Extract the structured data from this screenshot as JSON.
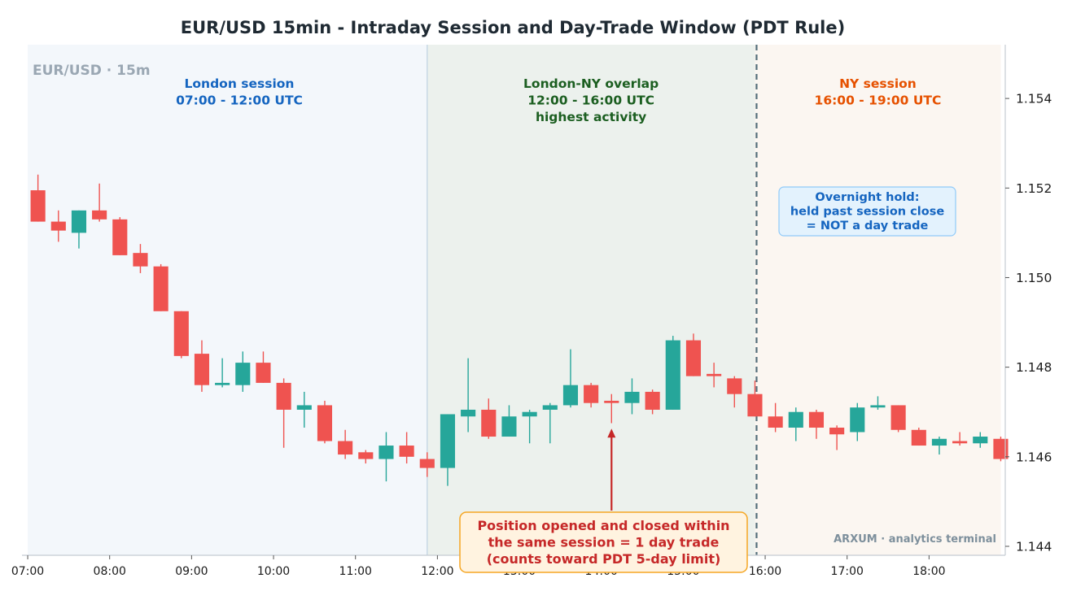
{
  "chart_data": {
    "type": "candlestick",
    "title": "EUR/USD 15min - Intraday Session and Day-Trade Window (PDT Rule)",
    "watermark": "EUR/USD · 15m",
    "footer": "ARXUM · analytics terminal",
    "xlabel": "",
    "ylabel": "",
    "x_ticks": [
      "07:00",
      "08:00",
      "09:00",
      "10:00",
      "11:00",
      "12:00",
      "13:00",
      "14:00",
      "15:00",
      "16:00",
      "17:00",
      "18:00"
    ],
    "y_ticks": [
      "1.144",
      "1.146",
      "1.148",
      "1.150",
      "1.152",
      "1.154"
    ],
    "ylim": [
      1.1438,
      1.1552
    ],
    "xlim_hours": [
      6.93,
      18.93
    ],
    "bar_interval_min": 15,
    "first_bar": "07:00",
    "y_axis_position": "right",
    "grid": false,
    "colors": {
      "up": "#26a69a",
      "down": "#ef5350"
    },
    "sessions": [
      {
        "name": "London session",
        "line2": "07:00 - 12:00 UTC",
        "line3": "",
        "start": 6.93,
        "end": 11.875,
        "fill": "#f3f7fb",
        "text_color": "#1565c0"
      },
      {
        "name": "London-NY overlap",
        "line2": "12:00 - 16:00 UTC",
        "line3": "highest activity",
        "start": 11.875,
        "end": 15.875,
        "fill": "#ecf1ed",
        "text_color": "#1b5e20"
      },
      {
        "name": "NY session",
        "line2": "16:00 - 19:00 UTC",
        "line3": "",
        "start": 15.875,
        "end": 18.875,
        "fill": "#fbf6f1",
        "text_color": "#e65100"
      }
    ],
    "session_close_line": 15.875,
    "annotations": {
      "overnight": {
        "lines": [
          "Overnight hold:",
          "held past session close",
          "= NOT a day trade"
        ],
        "color": "#1565c0"
      },
      "day_trade": {
        "lines": [
          "Position opened and closed within",
          "the same session = 1 day trade",
          "(counts toward PDT 5-day limit)"
        ],
        "color": "#c62828",
        "arrow_to_time": "14:00",
        "arrow_to_price": 1.1467
      }
    },
    "candles": [
      {
        "t": "07:00",
        "o": 1.15195,
        "h": 1.1523,
        "l": 1.15125,
        "c": 1.15125
      },
      {
        "t": "07:15",
        "o": 1.15125,
        "h": 1.1515,
        "l": 1.1508,
        "c": 1.15105
      },
      {
        "t": "07:30",
        "o": 1.151,
        "h": 1.1515,
        "l": 1.15065,
        "c": 1.1515
      },
      {
        "t": "07:45",
        "o": 1.1515,
        "h": 1.1521,
        "l": 1.15125,
        "c": 1.1513
      },
      {
        "t": "08:00",
        "o": 1.1513,
        "h": 1.15135,
        "l": 1.1505,
        "c": 1.1505
      },
      {
        "t": "08:15",
        "o": 1.15055,
        "h": 1.15075,
        "l": 1.1501,
        "c": 1.15025
      },
      {
        "t": "08:30",
        "o": 1.15025,
        "h": 1.1503,
        "l": 1.14925,
        "c": 1.14925
      },
      {
        "t": "08:45",
        "o": 1.14925,
        "h": 1.14925,
        "l": 1.1482,
        "c": 1.14825
      },
      {
        "t": "09:00",
        "o": 1.1483,
        "h": 1.1486,
        "l": 1.14745,
        "c": 1.1476
      },
      {
        "t": "09:15",
        "o": 1.1476,
        "h": 1.1482,
        "l": 1.14755,
        "c": 1.14765
      },
      {
        "t": "09:30",
        "o": 1.1476,
        "h": 1.14835,
        "l": 1.14745,
        "c": 1.1481
      },
      {
        "t": "09:45",
        "o": 1.1481,
        "h": 1.14835,
        "l": 1.14765,
        "c": 1.14765
      },
      {
        "t": "10:00",
        "o": 1.14765,
        "h": 1.14775,
        "l": 1.1462,
        "c": 1.14705
      },
      {
        "t": "10:15",
        "o": 1.14705,
        "h": 1.14745,
        "l": 1.14665,
        "c": 1.14715
      },
      {
        "t": "10:30",
        "o": 1.14715,
        "h": 1.14725,
        "l": 1.1463,
        "c": 1.14635
      },
      {
        "t": "10:45",
        "o": 1.14635,
        "h": 1.1466,
        "l": 1.14595,
        "c": 1.14605
      },
      {
        "t": "11:00",
        "o": 1.1461,
        "h": 1.14615,
        "l": 1.14585,
        "c": 1.14595
      },
      {
        "t": "11:15",
        "o": 1.14595,
        "h": 1.14655,
        "l": 1.14545,
        "c": 1.14625
      },
      {
        "t": "11:30",
        "o": 1.14625,
        "h": 1.14655,
        "l": 1.14585,
        "c": 1.146
      },
      {
        "t": "11:45",
        "o": 1.14595,
        "h": 1.1461,
        "l": 1.14555,
        "c": 1.14575
      },
      {
        "t": "12:00",
        "o": 1.14575,
        "h": 1.14695,
        "l": 1.14535,
        "c": 1.14695
      },
      {
        "t": "12:15",
        "o": 1.1469,
        "h": 1.1482,
        "l": 1.14655,
        "c": 1.14705
      },
      {
        "t": "12:30",
        "o": 1.14705,
        "h": 1.1473,
        "l": 1.1464,
        "c": 1.14645
      },
      {
        "t": "12:45",
        "o": 1.14645,
        "h": 1.14715,
        "l": 1.14645,
        "c": 1.1469
      },
      {
        "t": "13:00",
        "o": 1.1469,
        "h": 1.14705,
        "l": 1.1463,
        "c": 1.147
      },
      {
        "t": "13:15",
        "o": 1.14705,
        "h": 1.1472,
        "l": 1.1463,
        "c": 1.14715
      },
      {
        "t": "13:30",
        "o": 1.14715,
        "h": 1.1484,
        "l": 1.1471,
        "c": 1.1476
      },
      {
        "t": "13:45",
        "o": 1.1476,
        "h": 1.14765,
        "l": 1.1471,
        "c": 1.1472
      },
      {
        "t": "14:00",
        "o": 1.14725,
        "h": 1.1474,
        "l": 1.14675,
        "c": 1.1472
      },
      {
        "t": "14:15",
        "o": 1.1472,
        "h": 1.14775,
        "l": 1.14695,
        "c": 1.14745
      },
      {
        "t": "14:30",
        "o": 1.14745,
        "h": 1.1475,
        "l": 1.14695,
        "c": 1.14705
      },
      {
        "t": "14:45",
        "o": 1.14705,
        "h": 1.1487,
        "l": 1.14705,
        "c": 1.1486
      },
      {
        "t": "15:00",
        "o": 1.1486,
        "h": 1.14875,
        "l": 1.1478,
        "c": 1.1478
      },
      {
        "t": "15:15",
        "o": 1.14785,
        "h": 1.1481,
        "l": 1.14755,
        "c": 1.1478
      },
      {
        "t": "15:30",
        "o": 1.14775,
        "h": 1.1478,
        "l": 1.1471,
        "c": 1.1474
      },
      {
        "t": "15:45",
        "o": 1.1474,
        "h": 1.1477,
        "l": 1.1469,
        "c": 1.1469
      },
      {
        "t": "16:00",
        "o": 1.1469,
        "h": 1.1472,
        "l": 1.14655,
        "c": 1.14665
      },
      {
        "t": "16:15",
        "o": 1.14665,
        "h": 1.1471,
        "l": 1.14635,
        "c": 1.147
      },
      {
        "t": "16:30",
        "o": 1.147,
        "h": 1.14705,
        "l": 1.1464,
        "c": 1.14665
      },
      {
        "t": "16:45",
        "o": 1.14665,
        "h": 1.1467,
        "l": 1.14615,
        "c": 1.1465
      },
      {
        "t": "17:00",
        "o": 1.14655,
        "h": 1.1472,
        "l": 1.14635,
        "c": 1.1471
      },
      {
        "t": "17:15",
        "o": 1.1471,
        "h": 1.14735,
        "l": 1.14705,
        "c": 1.14715
      },
      {
        "t": "17:30",
        "o": 1.14715,
        "h": 1.14715,
        "l": 1.14655,
        "c": 1.1466
      },
      {
        "t": "17:45",
        "o": 1.1466,
        "h": 1.14665,
        "l": 1.14625,
        "c": 1.14625
      },
      {
        "t": "18:00",
        "o": 1.14625,
        "h": 1.14645,
        "l": 1.14605,
        "c": 1.1464
      },
      {
        "t": "18:15",
        "o": 1.14635,
        "h": 1.14655,
        "l": 1.14625,
        "c": 1.1463
      },
      {
        "t": "18:30",
        "o": 1.1463,
        "h": 1.14655,
        "l": 1.1462,
        "c": 1.14645
      },
      {
        "t": "18:45",
        "o": 1.1464,
        "h": 1.14645,
        "l": 1.1459,
        "c": 1.14595
      }
    ]
  }
}
